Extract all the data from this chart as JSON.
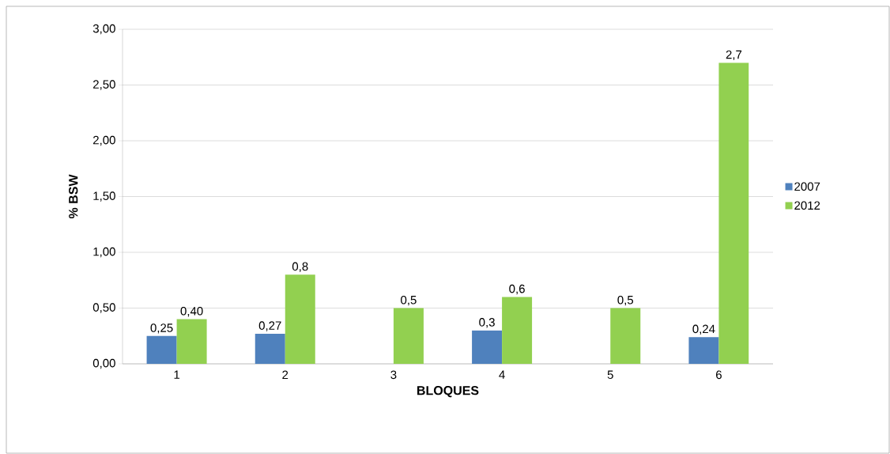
{
  "chart_data": {
    "type": "bar",
    "xlabel": "BLOQUES",
    "ylabel": "% BSW",
    "categories": [
      "1",
      "2",
      "3",
      "4",
      "5",
      "6"
    ],
    "series": [
      {
        "name": "2007",
        "color": "#4f81bd",
        "values": [
          0.25,
          0.27,
          null,
          0.3,
          null,
          0.24
        ],
        "value_labels": [
          "0,25",
          "0,27",
          null,
          "0,3",
          null,
          "0,24"
        ]
      },
      {
        "name": "2012",
        "color": "#92d050",
        "values": [
          0.4,
          0.8,
          0.5,
          0.6,
          0.5,
          2.7
        ],
        "value_labels": [
          "0,40",
          "0,8",
          "0,5",
          "0,6",
          "0,5",
          "2,7"
        ]
      }
    ],
    "ylim": [
      0,
      3
    ],
    "yticks": [
      {
        "value": 0,
        "label": "0,00"
      },
      {
        "value": 0.5,
        "label": "0,50"
      },
      {
        "value": 1,
        "label": "1,00"
      },
      {
        "value": 1.5,
        "label": "1,50"
      },
      {
        "value": 2,
        "label": "2,00"
      },
      {
        "value": 2.5,
        "label": "2,50"
      },
      {
        "value": 3,
        "label": "3,00"
      }
    ],
    "grid": "y",
    "legend": "right"
  }
}
